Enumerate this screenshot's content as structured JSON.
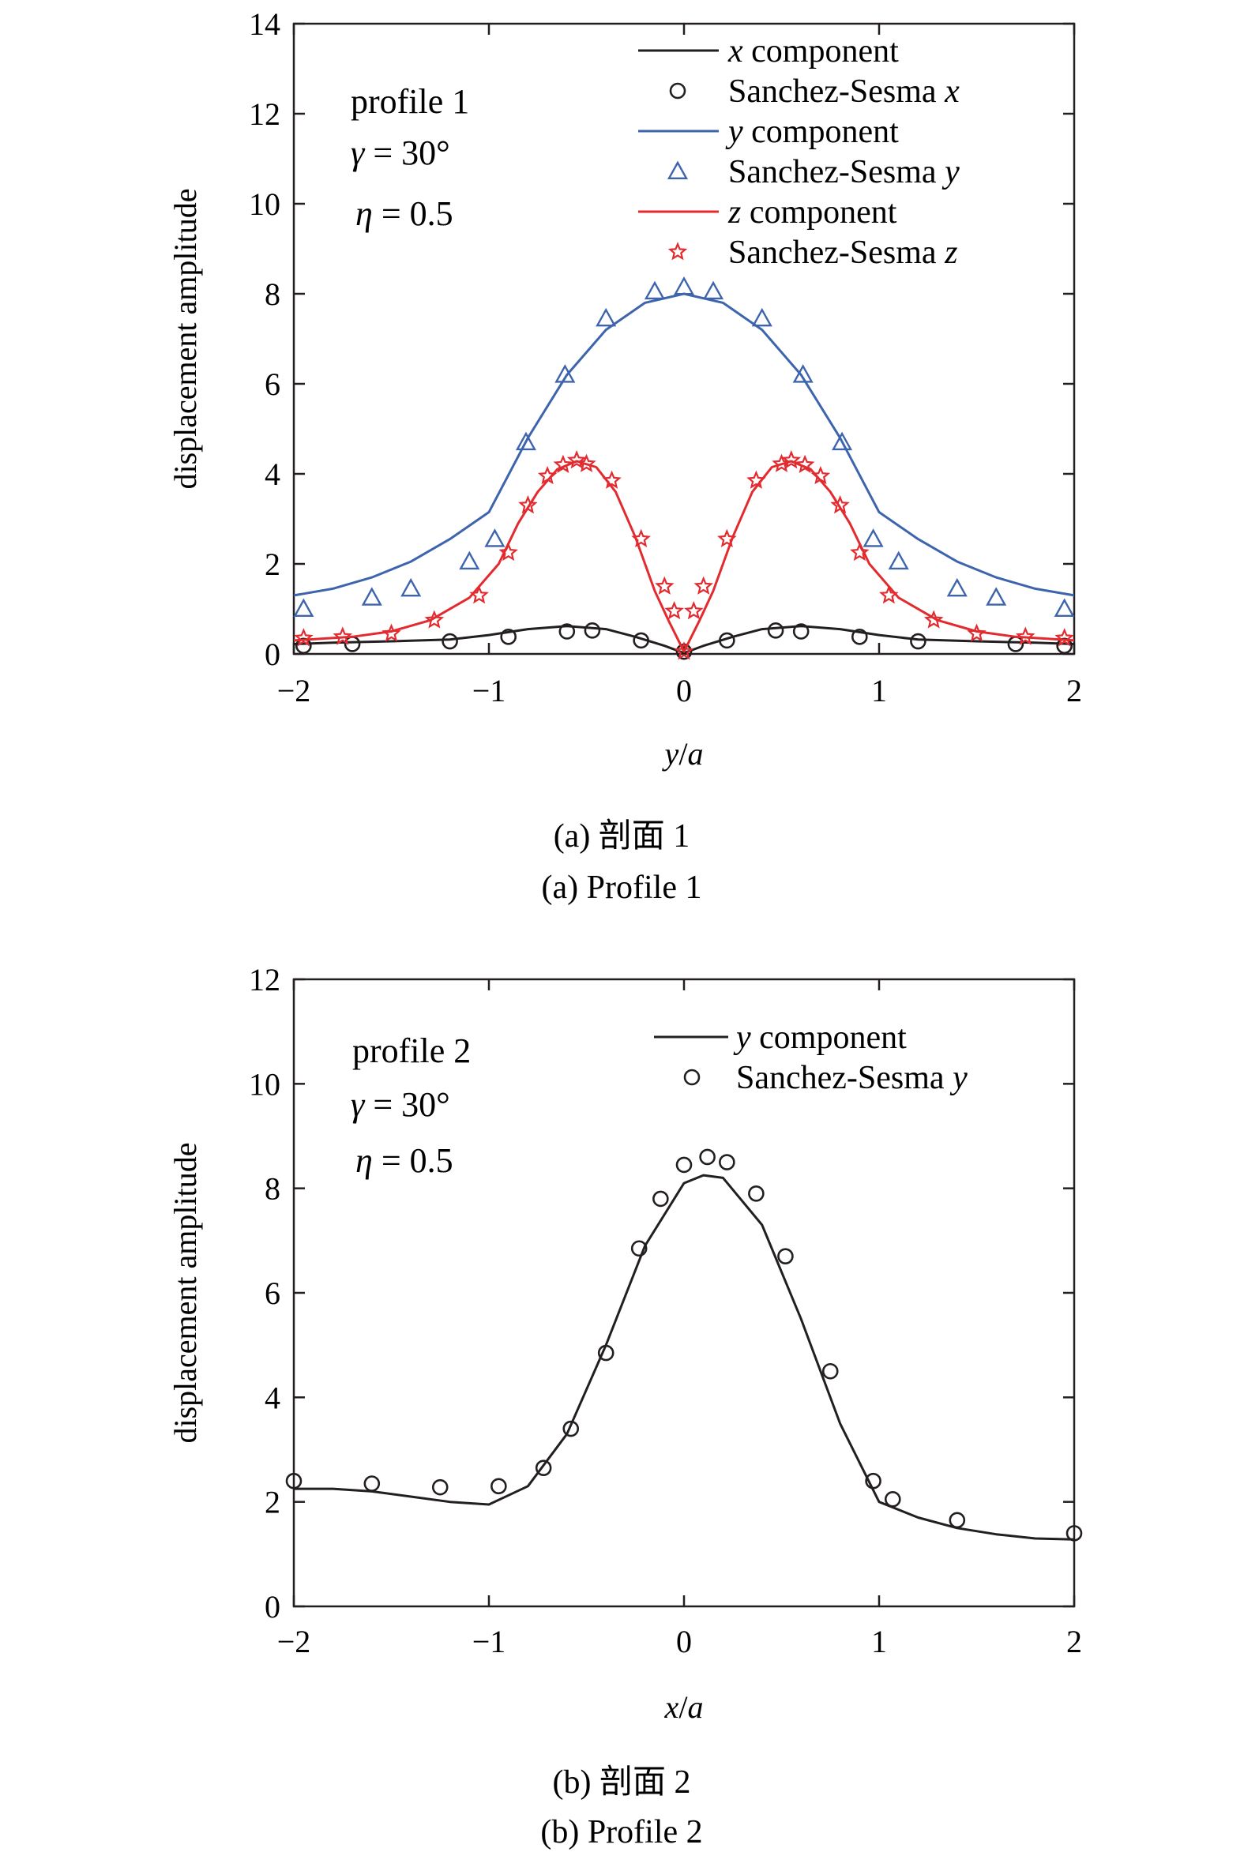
{
  "chart_data": [
    {
      "type": "line",
      "ylabel": "displacement amplitude",
      "xlabel_parts": [
        "y",
        "/",
        "a"
      ],
      "xlim": [
        -2,
        2
      ],
      "ylim": [
        0,
        14
      ],
      "xticks": [
        "−2",
        "−1",
        "0",
        "1",
        "2"
      ],
      "yticks": [
        "0",
        "2",
        "4",
        "6",
        "8",
        "10",
        "12",
        "14"
      ],
      "annotations": [
        {
          "plain": "profile 1"
        },
        {
          "sym": "γ",
          "rest": " = 30°"
        },
        {
          "sym": "η",
          "rest": " = 0.5"
        }
      ],
      "caption_cn": "(a) 剖面 1",
      "caption_en": "(a) Profile 1",
      "series": [
        {
          "name": "x component",
          "legend_sym": "x",
          "legend_rest": " component",
          "legend_italic_first": true,
          "kind": "line",
          "color": "#231f20",
          "x": [
            -2,
            -1.8,
            -1.5,
            -1.2,
            -1.0,
            -0.8,
            -0.6,
            -0.4,
            -0.25,
            -0.1,
            0,
            0.1,
            0.25,
            0.4,
            0.6,
            0.8,
            1.0,
            1.2,
            1.5,
            1.8,
            2
          ],
          "y": [
            0.22,
            0.25,
            0.28,
            0.32,
            0.42,
            0.55,
            0.62,
            0.55,
            0.38,
            0.18,
            0.02,
            0.18,
            0.38,
            0.55,
            0.62,
            0.55,
            0.42,
            0.32,
            0.28,
            0.25,
            0.22
          ]
        },
        {
          "name": "Sanchez-Sesma x",
          "legend_sym": "x",
          "legend_rest": "Sanchez-Sesma ",
          "legend_italic_first": false,
          "kind": "marker",
          "marker": "circle",
          "color": "#231f20",
          "x": [
            -1.95,
            -1.7,
            -1.2,
            -0.9,
            -0.6,
            -0.47,
            -0.22,
            0,
            0.22,
            0.47,
            0.6,
            0.9,
            1.2,
            1.7,
            1.95
          ],
          "y": [
            0.18,
            0.22,
            0.28,
            0.38,
            0.5,
            0.52,
            0.3,
            0.05,
            0.3,
            0.52,
            0.5,
            0.38,
            0.28,
            0.22,
            0.18
          ]
        },
        {
          "name": "y component",
          "legend_sym": "y",
          "legend_rest": " component",
          "legend_italic_first": true,
          "kind": "line",
          "color": "#3d64ac",
          "x": [
            -2,
            -1.8,
            -1.6,
            -1.4,
            -1.2,
            -1.0,
            -0.8,
            -0.6,
            -0.4,
            -0.2,
            0,
            0.2,
            0.4,
            0.6,
            0.8,
            1.0,
            1.2,
            1.4,
            1.6,
            1.8,
            2
          ],
          "y": [
            1.3,
            1.45,
            1.7,
            2.05,
            2.55,
            3.15,
            4.8,
            6.2,
            7.2,
            7.8,
            8.0,
            7.8,
            7.2,
            6.2,
            4.8,
            3.15,
            2.55,
            2.05,
            1.7,
            1.45,
            1.3
          ]
        },
        {
          "name": "Sanchez-Sesma y",
          "legend_sym": "y",
          "legend_rest": "Sanchez-Sesma ",
          "legend_italic_first": false,
          "kind": "marker",
          "marker": "triangle",
          "color": "#3d64ac",
          "x": [
            -1.95,
            -1.6,
            -1.4,
            -1.1,
            -0.97,
            -0.81,
            -0.61,
            -0.4,
            -0.15,
            0,
            0.15,
            0.4,
            0.61,
            0.81,
            0.97,
            1.1,
            1.4,
            1.6,
            1.95
          ],
          "y": [
            1.0,
            1.25,
            1.45,
            2.05,
            2.55,
            4.7,
            6.2,
            7.45,
            8.05,
            8.15,
            8.05,
            7.45,
            6.2,
            4.7,
            2.55,
            2.05,
            1.45,
            1.25,
            1.0
          ]
        },
        {
          "name": "z component",
          "legend_sym": "z",
          "legend_rest": " component",
          "legend_italic_first": true,
          "kind": "line",
          "color": "#e22a2f",
          "x": [
            -2,
            -1.7,
            -1.5,
            -1.3,
            -1.1,
            -0.95,
            -0.85,
            -0.75,
            -0.65,
            -0.55,
            -0.45,
            -0.35,
            -0.25,
            -0.15,
            -0.08,
            0,
            0.08,
            0.15,
            0.25,
            0.35,
            0.45,
            0.55,
            0.65,
            0.75,
            0.85,
            0.95,
            1.1,
            1.3,
            1.5,
            1.7,
            2
          ],
          "y": [
            0.3,
            0.38,
            0.5,
            0.75,
            1.25,
            2.0,
            2.9,
            3.6,
            4.1,
            4.28,
            4.15,
            3.6,
            2.6,
            1.4,
            0.75,
            0.05,
            0.75,
            1.4,
            2.6,
            3.6,
            4.15,
            4.28,
            4.1,
            3.6,
            2.9,
            2.0,
            1.25,
            0.75,
            0.5,
            0.38,
            0.3
          ]
        },
        {
          "name": "Sanchez-Sesma z",
          "legend_sym": "z",
          "legend_rest": "Sanchez-Sesma ",
          "legend_italic_first": false,
          "kind": "marker",
          "marker": "star",
          "color": "#e22a2f",
          "x": [
            -1.95,
            -1.75,
            -1.5,
            -1.28,
            -1.05,
            -0.9,
            -0.8,
            -0.7,
            -0.62,
            -0.55,
            -0.5,
            -0.37,
            -0.22,
            -0.1,
            -0.05,
            0,
            0.05,
            0.1,
            0.22,
            0.37,
            0.5,
            0.55,
            0.62,
            0.7,
            0.8,
            0.9,
            1.05,
            1.28,
            1.5,
            1.75,
            1.95
          ],
          "y": [
            0.35,
            0.38,
            0.45,
            0.75,
            1.3,
            2.25,
            3.3,
            3.95,
            4.2,
            4.3,
            4.22,
            3.85,
            2.55,
            1.5,
            0.95,
            0.05,
            0.95,
            1.5,
            2.55,
            3.85,
            4.22,
            4.3,
            4.2,
            3.95,
            3.3,
            2.25,
            1.3,
            0.75,
            0.45,
            0.38,
            0.35
          ]
        }
      ]
    },
    {
      "type": "line",
      "ylabel": "displacement amplitude",
      "xlabel_parts": [
        "x",
        "/",
        "a"
      ],
      "xlim": [
        -2,
        2
      ],
      "ylim": [
        0,
        12
      ],
      "xticks": [
        "−2",
        "−1",
        "0",
        "1",
        "2"
      ],
      "yticks": [
        "0",
        "2",
        "4",
        "6",
        "8",
        "10",
        "12"
      ],
      "annotations": [
        {
          "plain": "profile 2"
        },
        {
          "sym": "γ",
          "rest": " = 30°"
        },
        {
          "sym": "η",
          "rest": " = 0.5"
        }
      ],
      "caption_cn": "(b) 剖面 2",
      "caption_en": "(b) Profile 2",
      "series": [
        {
          "name": "y component",
          "legend_sym": "y",
          "legend_rest": " component",
          "legend_italic_first": true,
          "kind": "line",
          "color": "#231f20",
          "x": [
            -2,
            -1.8,
            -1.6,
            -1.4,
            -1.2,
            -1.0,
            -0.8,
            -0.6,
            -0.4,
            -0.2,
            0,
            0.1,
            0.2,
            0.4,
            0.6,
            0.8,
            1.0,
            1.2,
            1.4,
            1.6,
            1.8,
            2
          ],
          "y": [
            2.25,
            2.25,
            2.2,
            2.1,
            2.0,
            1.95,
            2.3,
            3.3,
            5.0,
            6.9,
            8.1,
            8.25,
            8.2,
            7.3,
            5.5,
            3.5,
            2.0,
            1.7,
            1.5,
            1.38,
            1.3,
            1.28
          ]
        },
        {
          "name": "Sanchez-Sesma y",
          "legend_sym": "y",
          "legend_rest": "Sanchez-Sesma ",
          "legend_italic_first": false,
          "kind": "marker",
          "marker": "circle",
          "color": "#231f20",
          "x": [
            -2,
            -1.6,
            -1.25,
            -0.95,
            -0.72,
            -0.58,
            -0.4,
            -0.23,
            -0.12,
            0,
            0.12,
            0.22,
            0.37,
            0.52,
            0.75,
            0.97,
            1.07,
            1.4,
            2
          ],
          "y": [
            2.4,
            2.35,
            2.28,
            2.3,
            2.65,
            3.4,
            4.85,
            6.85,
            7.8,
            8.45,
            8.6,
            8.5,
            7.9,
            6.7,
            4.5,
            2.4,
            2.05,
            1.65,
            1.4
          ]
        }
      ]
    }
  ]
}
